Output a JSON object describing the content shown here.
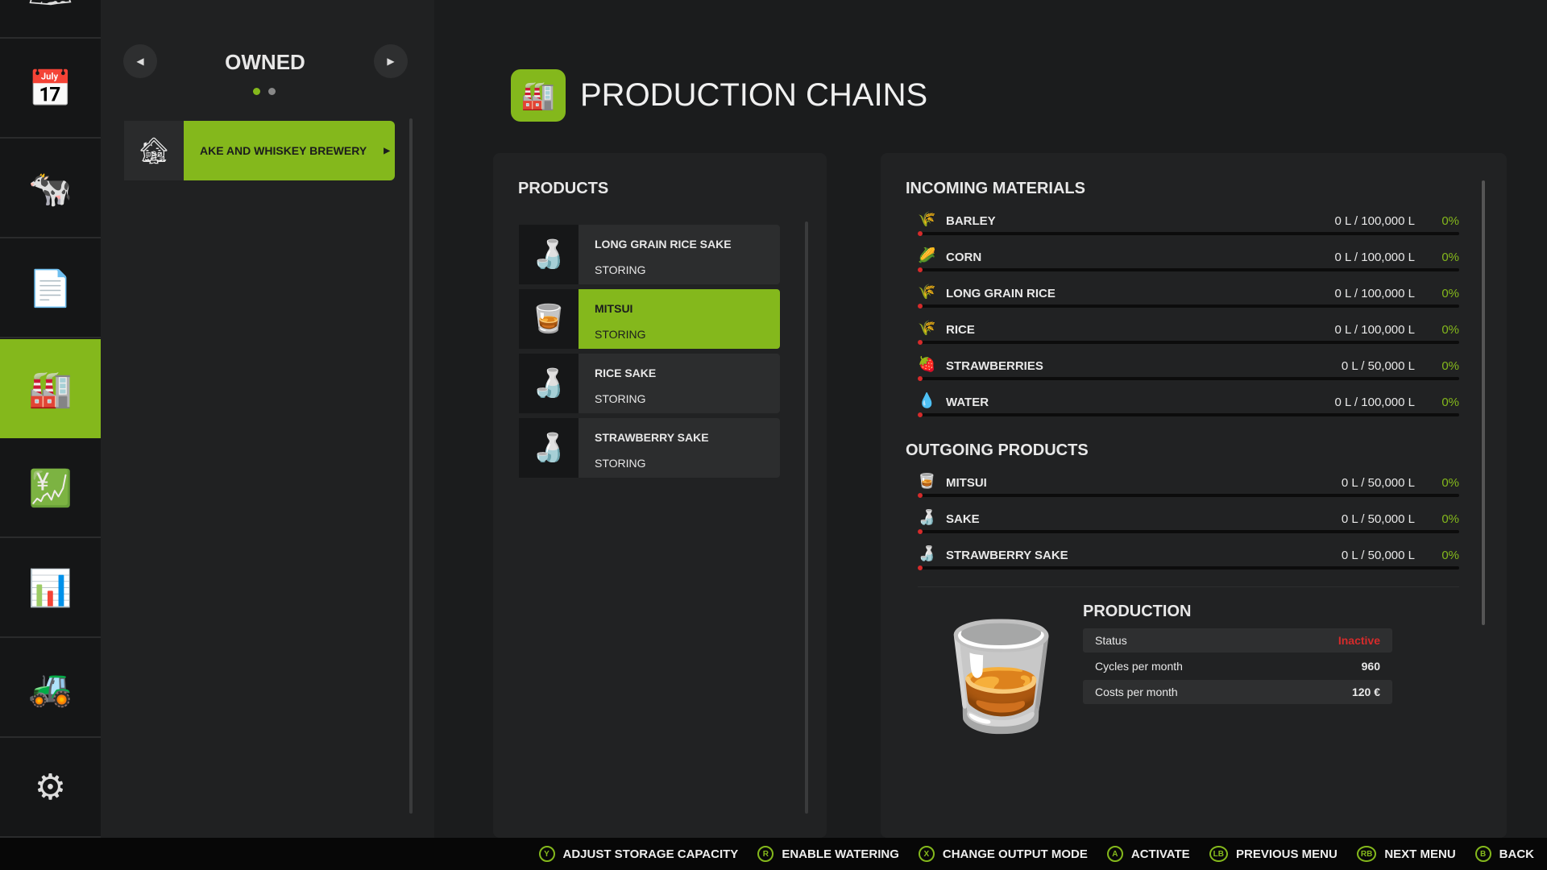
{
  "sidebar": {
    "items": [
      {
        "icon": "map-icon",
        "glyph": "🗺"
      },
      {
        "icon": "calendar-icon",
        "glyph": "📅"
      },
      {
        "icon": "animals-icon",
        "glyph": "🐄"
      },
      {
        "icon": "contracts-icon",
        "glyph": "📄"
      },
      {
        "icon": "production-icon",
        "glyph": "🏭",
        "active": true
      },
      {
        "icon": "finances-icon",
        "glyph": "💹"
      },
      {
        "icon": "statistics-icon",
        "glyph": "📊"
      },
      {
        "icon": "vehicles-icon",
        "glyph": "🚜"
      },
      {
        "icon": "settings-icon",
        "glyph": "⚙"
      }
    ]
  },
  "left": {
    "title": "OWNED",
    "page": 1,
    "pages": 2,
    "items": [
      {
        "label": "AKE AND WHISKEY BREWERY",
        "selected": true
      }
    ]
  },
  "header": {
    "title": "PRODUCTION CHAINS"
  },
  "products": {
    "title": "PRODUCTS",
    "items": [
      {
        "name": "LONG GRAIN RICE SAKE",
        "status": "STORING",
        "glyph": "🍶"
      },
      {
        "name": "MITSUI",
        "status": "STORING",
        "glyph": "🥃",
        "selected": true
      },
      {
        "name": "RICE SAKE",
        "status": "STORING",
        "glyph": "🍶"
      },
      {
        "name": "STRAWBERRY SAKE",
        "status": "STORING",
        "glyph": "🍶"
      }
    ]
  },
  "incoming": {
    "title": "INCOMING MATERIALS",
    "items": [
      {
        "name": "BARLEY",
        "value": "0 L / 100,000 L",
        "pct": "0%",
        "glyph": "🌾"
      },
      {
        "name": "CORN",
        "value": "0 L / 100,000 L",
        "pct": "0%",
        "glyph": "🌽"
      },
      {
        "name": "LONG GRAIN RICE",
        "value": "0 L / 100,000 L",
        "pct": "0%",
        "glyph": "🌾"
      },
      {
        "name": "RICE",
        "value": "0 L / 100,000 L",
        "pct": "0%",
        "glyph": "🌾"
      },
      {
        "name": "STRAWBERRIES",
        "value": "0 L / 50,000 L",
        "pct": "0%",
        "glyph": "🍓"
      },
      {
        "name": "WATER",
        "value": "0 L / 100,000 L",
        "pct": "0%",
        "glyph": "💧"
      }
    ]
  },
  "outgoing": {
    "title": "OUTGOING PRODUCTS",
    "items": [
      {
        "name": "MITSUI",
        "value": "0 L / 50,000 L",
        "pct": "0%",
        "glyph": "🥃"
      },
      {
        "name": "SAKE",
        "value": "0 L / 50,000 L",
        "pct": "0%",
        "glyph": "🍶"
      },
      {
        "name": "STRAWBERRY SAKE",
        "value": "0 L / 50,000 L",
        "pct": "0%",
        "glyph": "🍶"
      }
    ]
  },
  "production": {
    "title": "PRODUCTION",
    "rows": [
      {
        "label": "Status",
        "value": "Inactive"
      },
      {
        "label": "Cycles per month",
        "value": "960"
      },
      {
        "label": "Costs per month",
        "value": "120 €"
      }
    ]
  },
  "colors": {
    "accent": "#84b81c",
    "inactive": "#d62b2b"
  },
  "hints": [
    {
      "key": "Y",
      "label": "ADJUST STORAGE CAPACITY"
    },
    {
      "key": "R",
      "label": "ENABLE WATERING"
    },
    {
      "key": "X",
      "label": "CHANGE OUTPUT MODE"
    },
    {
      "key": "A",
      "label": "ACTIVATE"
    },
    {
      "key": "LB",
      "label": "PREVIOUS MENU"
    },
    {
      "key": "RB",
      "label": "NEXT MENU"
    },
    {
      "key": "B",
      "label": "BACK"
    }
  ]
}
